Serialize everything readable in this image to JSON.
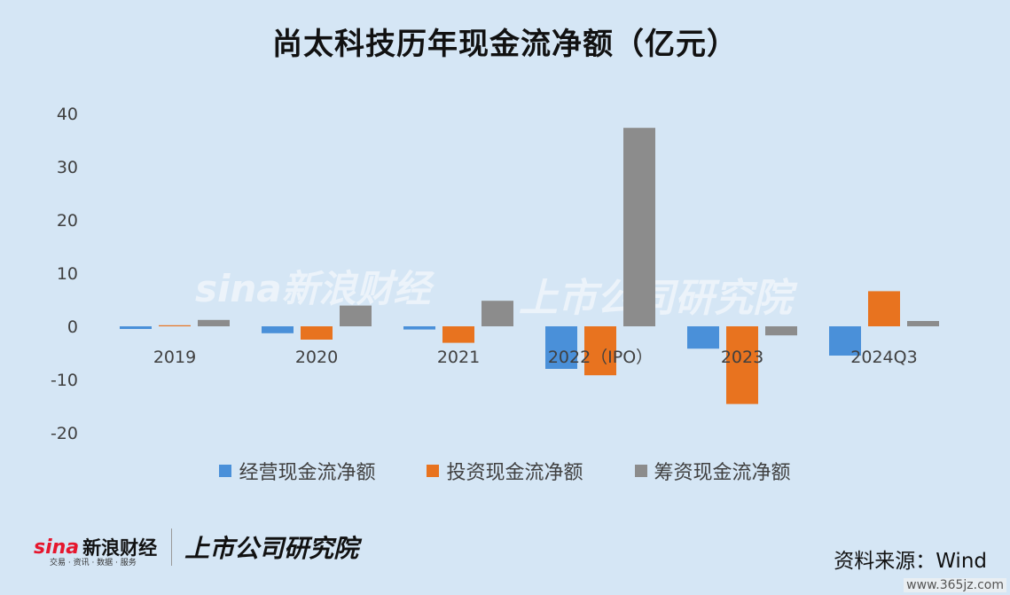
{
  "title": "尚太科技历年现金流净额（亿元）",
  "colors": {
    "background": "#d5e6f5",
    "operating": "#4a90d9",
    "investing": "#e8731f",
    "financing": "#8c8c8c"
  },
  "chart_data": {
    "type": "bar",
    "title": "尚太科技历年现金流净额（亿元）",
    "xlabel": "",
    "ylabel": "",
    "categories": [
      "2019",
      "2020",
      "2021",
      "2022（IPO）",
      "2023",
      "2024Q3"
    ],
    "series": [
      {
        "name": "经营现金流净额",
        "values": [
          -0.5,
          -1.3,
          -0.6,
          -8.0,
          -4.2,
          -5.5
        ]
      },
      {
        "name": "投资现金流净额",
        "values": [
          0.2,
          -2.5,
          -3.1,
          -9.2,
          -14.6,
          6.6
        ]
      },
      {
        "name": "筹资现金流净额",
        "values": [
          1.2,
          3.9,
          4.8,
          37.3,
          -1.7,
          1.0
        ]
      }
    ],
    "ylim": [
      -20,
      40
    ],
    "yticks": [
      40,
      30,
      20,
      10,
      0,
      -10,
      -20
    ],
    "grid": false,
    "legend": "bottom"
  },
  "watermark": {
    "left": "sina新浪财经",
    "right": "上市公司研究院"
  },
  "footer": {
    "sina_logo": "sina",
    "sina_name": "新浪财经",
    "sina_sub": "交易 · 资讯 · 数据 · 服务",
    "institute": "上市公司研究院",
    "source": "资料来源：Wind",
    "site": "www.365jz.com"
  }
}
